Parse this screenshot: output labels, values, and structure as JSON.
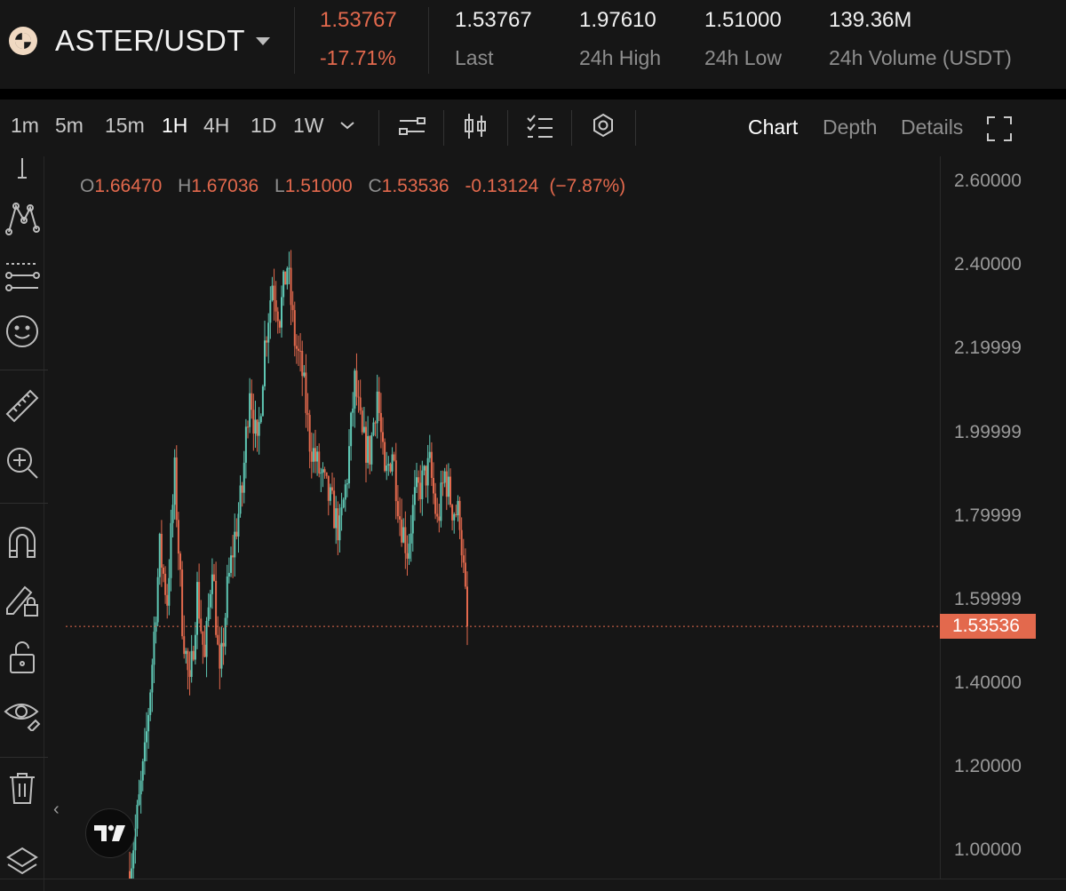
{
  "ticker": {
    "pair": "ASTER/USDT",
    "price": "1.53767",
    "change_pct": "-17.71%",
    "stats": [
      {
        "value": "1.53767",
        "label": "Last"
      },
      {
        "value": "1.97610",
        "label": "24h High"
      },
      {
        "value": "1.51000",
        "label": "24h Low"
      },
      {
        "value": "139.36M",
        "label": "24h Volume (USDT)"
      }
    ]
  },
  "toolbar": {
    "timeframes": [
      "1m",
      "5m",
      "15m",
      "1H",
      "4H",
      "1D",
      "1W"
    ],
    "active_timeframe": "1H",
    "views": [
      "Chart",
      "Depth",
      "Details"
    ],
    "active_view": "Chart"
  },
  "draw_tools": [
    "cursor-line-icon",
    "pattern-icon",
    "fib-lines-icon",
    "emoji-icon",
    "ruler-icon",
    "zoom-in-icon",
    "magnet-icon",
    "pencil-lock-icon",
    "unlock-icon",
    "eye-icon",
    "trash-icon",
    "layers-icon"
  ],
  "legend": {
    "o_label": "O",
    "o": "1.66470",
    "h_label": "H",
    "h": "1.67036",
    "l_label": "L",
    "l": "1.51000",
    "c_label": "C",
    "c": "1.53536",
    "change": "-0.13124",
    "change_pct": "(−7.87%)"
  },
  "colors": {
    "up": "#5fc7b4",
    "down": "#e3694d",
    "bg": "#161616"
  },
  "chart_data": {
    "type": "candlestick",
    "y_ticks": [
      "2.60000",
      "2.40000",
      "2.19999",
      "1.99999",
      "1.79999",
      "1.59999",
      "1.40000",
      "1.20000",
      "1.00000"
    ],
    "ylim": [
      0.93,
      2.66
    ],
    "last_price": "1.53536",
    "close_path": [
      [
        0,
        0.95
      ],
      [
        4,
        1.08
      ],
      [
        8,
        1.22
      ],
      [
        12,
        1.45
      ],
      [
        16,
        1.72
      ],
      [
        20,
        1.6
      ],
      [
        24,
        1.9
      ],
      [
        28,
        1.55
      ],
      [
        32,
        1.38
      ],
      [
        36,
        1.62
      ],
      [
        40,
        1.45
      ],
      [
        44,
        1.7
      ],
      [
        48,
        1.4
      ],
      [
        52,
        1.62
      ],
      [
        56,
        1.75
      ],
      [
        60,
        1.86
      ],
      [
        64,
        2.12
      ],
      [
        68,
        1.95
      ],
      [
        72,
        2.21
      ],
      [
        76,
        2.36
      ],
      [
        80,
        2.28
      ],
      [
        84,
        2.4
      ],
      [
        88,
        2.22
      ],
      [
        92,
        2.14
      ],
      [
        96,
        1.98
      ],
      [
        100,
        1.92
      ],
      [
        104,
        1.87
      ],
      [
        108,
        1.82
      ],
      [
        112,
        1.76
      ],
      [
        116,
        1.9
      ],
      [
        120,
        2.12
      ],
      [
        124,
        1.98
      ],
      [
        128,
        1.95
      ],
      [
        132,
        2.1
      ],
      [
        136,
        1.88
      ],
      [
        140,
        1.96
      ],
      [
        144,
        1.8
      ],
      [
        148,
        1.72
      ],
      [
        152,
        1.84
      ],
      [
        156,
        1.88
      ],
      [
        160,
        1.92
      ],
      [
        164,
        1.78
      ],
      [
        168,
        1.9
      ],
      [
        172,
        1.82
      ],
      [
        176,
        1.8
      ],
      [
        180,
        1.53
      ]
    ]
  }
}
